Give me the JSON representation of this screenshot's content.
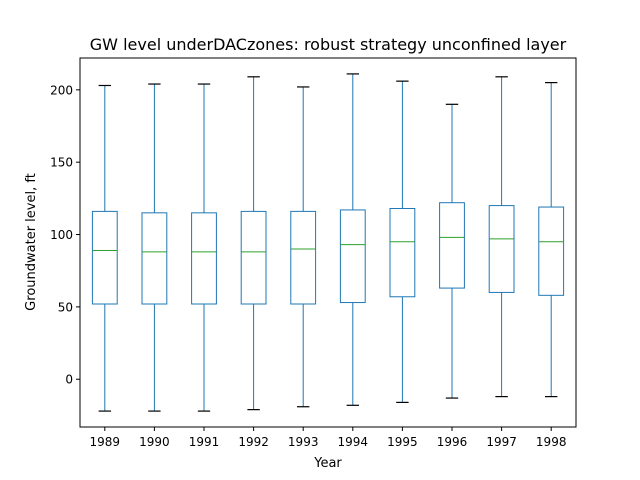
{
  "chart_data": {
    "type": "boxplot",
    "title": "GW level underDACzones: robust strategy unconfined layer",
    "xlabel": "Year",
    "ylabel": "Groundwater level, ft",
    "ylim": [
      -33,
      222
    ],
    "yticks": [
      0,
      50,
      100,
      150,
      200
    ],
    "grid": false,
    "categories": [
      "1989",
      "1990",
      "1991",
      "1992",
      "1993",
      "1994",
      "1995",
      "1996",
      "1997",
      "1998"
    ],
    "boxes": [
      {
        "category": "1989",
        "whisker_low": -22,
        "q1": 52,
        "median": 89,
        "q3": 116,
        "whisker_high": 203
      },
      {
        "category": "1990",
        "whisker_low": -22,
        "q1": 52,
        "median": 88,
        "q3": 115,
        "whisker_high": 204
      },
      {
        "category": "1991",
        "whisker_low": -22,
        "q1": 52,
        "median": 88,
        "q3": 115,
        "whisker_high": 204
      },
      {
        "category": "1992",
        "whisker_low": -21,
        "q1": 52,
        "median": 88,
        "q3": 116,
        "whisker_high": 209
      },
      {
        "category": "1993",
        "whisker_low": -19,
        "q1": 52,
        "median": 90,
        "q3": 116,
        "whisker_high": 202
      },
      {
        "category": "1994",
        "whisker_low": -18,
        "q1": 53,
        "median": 93,
        "q3": 117,
        "whisker_high": 211
      },
      {
        "category": "1995",
        "whisker_low": -16,
        "q1": 57,
        "median": 95,
        "q3": 118,
        "whisker_high": 206
      },
      {
        "category": "1996",
        "whisker_low": -13,
        "q1": 63,
        "median": 98,
        "q3": 122,
        "whisker_high": 190
      },
      {
        "category": "1997",
        "whisker_low": -12,
        "q1": 60,
        "median": 97,
        "q3": 120,
        "whisker_high": 209
      },
      {
        "category": "1998",
        "whisker_low": -12,
        "q1": 58,
        "median": 95,
        "q3": 119,
        "whisker_high": 205
      }
    ],
    "colors": {
      "box": "#1f77b4",
      "median": "#2ca02c",
      "whisker": "#1f77b4",
      "cap": "#000000",
      "axis": "#000000"
    }
  }
}
